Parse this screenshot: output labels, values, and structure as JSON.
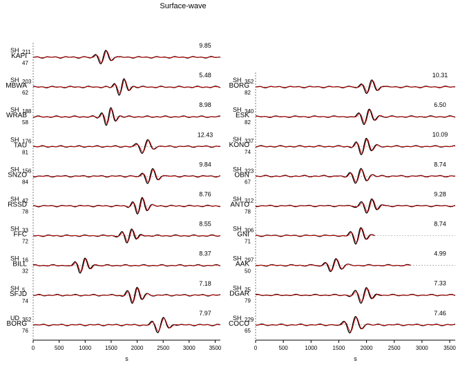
{
  "chart_data": {
    "type": "line",
    "title": "Surface-wave",
    "xlabel": "s",
    "xlim": [
      0,
      3600
    ],
    "xticks": [
      0,
      500,
      1000,
      1500,
      2000,
      2500,
      3000,
      3500
    ],
    "series_colors": {
      "observed": "#000000",
      "synthetic": "#cc0000"
    },
    "panels": [
      {
        "traces": [
          {
            "component": "SH",
            "station": "KAPI",
            "azimuth": "211",
            "distance": "47",
            "amplitude": "9.85",
            "center": 1350,
            "sigma": 170,
            "period": 210,
            "end": 3600
          },
          {
            "component": "SH",
            "station": "MBWA",
            "azimuth": "203",
            "distance": "62",
            "amplitude": "5.48",
            "center": 1700,
            "sigma": 150,
            "period": 200,
            "end": 3600
          },
          {
            "component": "SH",
            "station": "WRAB",
            "azimuth": "188",
            "distance": "58",
            "amplitude": "8.98",
            "center": 1450,
            "sigma": 150,
            "period": 190,
            "end": 3600
          },
          {
            "component": "SH",
            "station": "TAU",
            "azimuth": "176",
            "distance": "81",
            "amplitude": "12.43",
            "center": 2150,
            "sigma": 170,
            "period": 230,
            "end": 3600
          },
          {
            "component": "SH",
            "station": "SNZO",
            "azimuth": "156",
            "distance": "84",
            "amplitude": "9.84",
            "center": 2250,
            "sigma": 170,
            "period": 210,
            "end": 3600
          },
          {
            "component": "SH",
            "station": "RSSD",
            "azimuth": "42",
            "distance": "78",
            "amplitude": "8.76",
            "center": 2050,
            "sigma": 160,
            "period": 200,
            "end": 3600
          },
          {
            "component": "SH",
            "station": "FFC",
            "azimuth": "33",
            "distance": "72",
            "amplitude": "8.55",
            "center": 1850,
            "sigma": 160,
            "period": 200,
            "end": 3600
          },
          {
            "component": "SH",
            "station": "BILL",
            "azimuth": "16",
            "distance": "32",
            "amplitude": "8.37",
            "center": 950,
            "sigma": 170,
            "period": 200,
            "end": 3600
          },
          {
            "component": "SH",
            "station": "SFJD",
            "azimuth": "5",
            "distance": "74",
            "amplitude": "7.18",
            "center": 1950,
            "sigma": 170,
            "period": 200,
            "end": 3600
          },
          {
            "component": "UD",
            "station": "BORG",
            "azimuth": "352",
            "distance": "76",
            "amplitude": "7.97",
            "center": 2450,
            "sigma": 190,
            "period": 240,
            "end": 3600
          }
        ]
      },
      {
        "traces": [
          {
            "component": "SH",
            "station": "BORG",
            "azimuth": "352",
            "distance": "82",
            "amplitude": "10.31",
            "center": 2050,
            "sigma": 170,
            "period": 200,
            "end": 3600
          },
          {
            "component": "SH",
            "station": "ESK",
            "azimuth": "340",
            "distance": "82",
            "amplitude": "6.50",
            "center": 2000,
            "sigma": 170,
            "period": 200,
            "end": 3600
          },
          {
            "component": "SH",
            "station": "KONO",
            "azimuth": "337",
            "distance": "74",
            "amplitude": "10.09",
            "center": 1950,
            "sigma": 160,
            "period": 200,
            "end": 3600
          },
          {
            "component": "SH",
            "station": "OBN",
            "azimuth": "323",
            "distance": "67",
            "amplitude": "8.74",
            "center": 1850,
            "sigma": 200,
            "period": 210,
            "end": 3600
          },
          {
            "component": "SH",
            "station": "ANTO",
            "azimuth": "312",
            "distance": "78",
            "amplitude": "9.28",
            "center": 2050,
            "sigma": 170,
            "period": 200,
            "end": 3600
          },
          {
            "component": "SH",
            "station": "GNI",
            "azimuth": "306",
            "distance": "71",
            "amplitude": "8.74",
            "center": 1850,
            "sigma": 160,
            "period": 200,
            "end": 2150
          },
          {
            "component": "SH",
            "station": "AAK",
            "azimuth": "297",
            "distance": "50",
            "amplitude": "4.99",
            "center": 1400,
            "sigma": 170,
            "period": 210,
            "end": 2800
          },
          {
            "component": "SH",
            "station": "DGAR",
            "azimuth": "25",
            "distance": "79",
            "amplitude": "7.33",
            "center": 1950,
            "sigma": 180,
            "period": 210,
            "end": 3600
          },
          {
            "component": "SH",
            "station": "COCO",
            "azimuth": "229",
            "distance": "65",
            "amplitude": "7.46",
            "center": 1750,
            "sigma": 180,
            "period": 220,
            "end": 3600
          }
        ]
      }
    ]
  }
}
